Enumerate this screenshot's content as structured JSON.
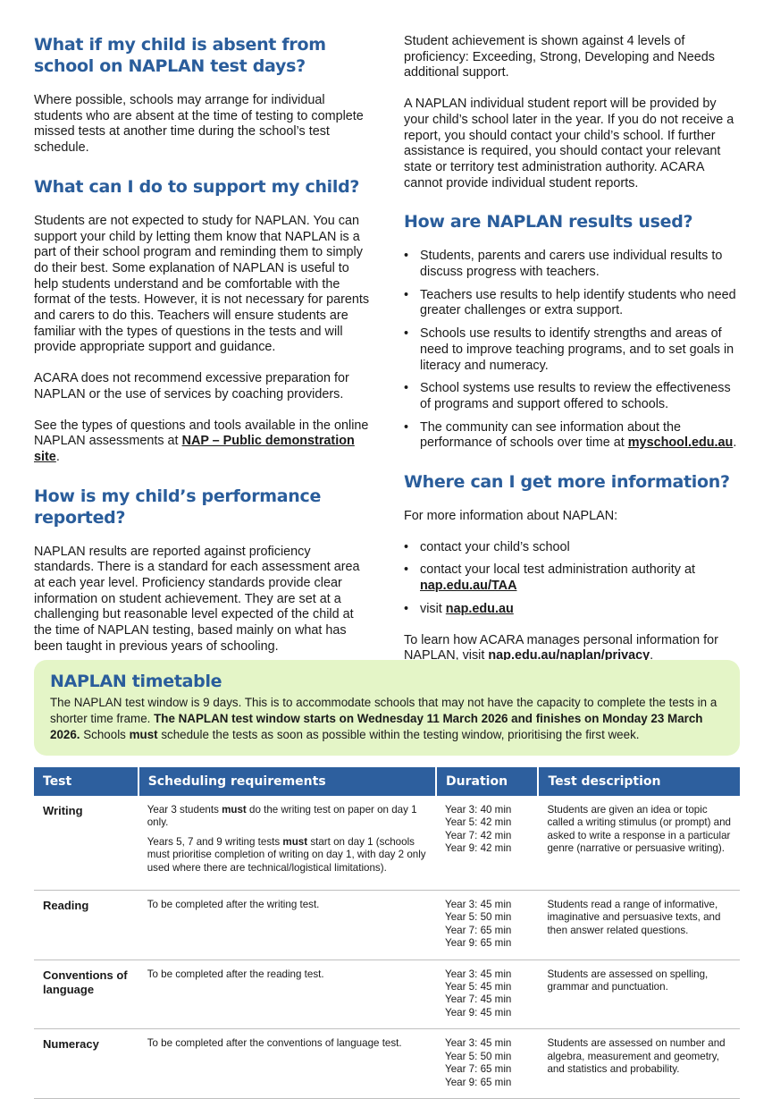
{
  "sections": [
    {
      "heading": "What if my child is absent from school on NAPLAN test days?",
      "body": [
        "Where possible, schools may arrange for individual students who are absent at the time of testing to complete missed tests at another time during the school’s test schedule."
      ]
    },
    {
      "heading": "What can I do to support my child?",
      "body": [
        "Students are not expected to study for NAPLAN. You can support your child by letting them know that NAPLAN is a part of their school program and reminding them to simply do their best. Some explanation of NAPLAN is useful to help students understand and be comfortable with the format of the tests. However, it is not necessary for parents and carers to do this. Teachers will ensure students are familiar with the types of questions in the tests and will provide appropriate support and guidance.",
        "ACARA does not recommend excessive preparation for NAPLAN or the use of services by coaching providers.",
        [
          "See the types of questions and tools available in the online NAPLAN assessments at ",
          "NAP – Public demonstration site",
          "."
        ]
      ]
    },
    {
      "heading": "How is my child’s performance reported?",
      "body": [
        "NAPLAN results are reported against proficiency standards. There is a standard for each assessment area at each year level. Proficiency standards provide clear information on student achievement. They are set at a challenging but reasonable level expected of the child at the time of NAPLAN testing, based mainly on what has been taught in previous years of schooling.",
        "Student achievement is shown against 4 levels of proficiency: Exceeding, Strong, Developing and Needs additional support.",
        "A NAPLAN individual student report will be provided by your child’s school later in the year. If you do not receive a report, you should contact your child’s school. If further assistance is required, you should contact your relevant state or territory test administration authority. ACARA cannot provide individual student reports."
      ]
    },
    {
      "heading": "How are NAPLAN results used?",
      "bullets": [
        "Students, parents and carers use individual results to discuss progress with teachers.",
        "Teachers use results to help identify students who need greater challenges or extra support.",
        "Schools use results to identify strengths and areas of need to improve teaching programs, and to set goals in literacy and numeracy.",
        "School systems use results to review the effectiveness of programs and support offered to schools.",
        [
          "The community can see information about the performance of schools over time at ",
          "myschool.edu.au",
          "."
        ]
      ]
    },
    {
      "heading": "Where can I get more information?",
      "body": [
        "For more information about NAPLAN:"
      ],
      "bullets": [
        "contact your child’s school",
        [
          "contact your local test administration authority at ",
          "nap.edu.au/TAA"
        ],
        [
          "visit ",
          "nap.edu.au"
        ]
      ],
      "footer": [
        "To learn how ACARA manages personal information for NAPLAN, visit ",
        "nap.edu.au/naplan/privacy",
        "."
      ]
    }
  ],
  "timetable": {
    "title": "NAPLAN timetable",
    "text": [
      "The NAPLAN test window is 9 days. This is to accommodate schools that may not have the capacity to complete the tests in a shorter time frame. ",
      "The NAPLAN test window starts on Wednesday 11 March 2026 and finishes on Monday 23 March 2026.",
      " Schools ",
      "must",
      " schedule the tests as soon as possible within the testing window, prioritising the first week."
    ]
  },
  "table": {
    "headers": [
      "Test",
      "Scheduling requirements",
      "Duration",
      "Test description"
    ],
    "rows": [
      {
        "test": "Writing",
        "scheduling": [
          [
            "Year 3 students ",
            "must",
            " do the writing test on paper on day 1 only."
          ],
          [
            "Years 5, 7 and 9 writing tests ",
            "must",
            " start on day 1 (schools must prioritise completion of writing on day 1, with day 2 only used where there are technical/logistical limitations)."
          ]
        ],
        "duration": [
          "Year 3: 40 min",
          "Year 5: 42 min",
          "Year 7: 42 min",
          "Year 9: 42 min"
        ],
        "description": "Students are given an idea or topic called a writing stimulus (or prompt) and asked to write a response in a particular genre (narrative or persuasive writing)."
      },
      {
        "test": "Reading",
        "scheduling": [
          "To be completed after the writing test."
        ],
        "duration": [
          "Year 3: 45 min",
          "Year 5: 50 min",
          "Year 7: 65 min",
          "Year 9: 65 min"
        ],
        "description": "Students read a range of informative, imaginative and persuasive texts, and then answer related questions."
      },
      {
        "test": "Conventions of language",
        "scheduling": [
          "To be completed after the reading test."
        ],
        "duration": [
          "Year 3: 45 min",
          "Year 5: 45 min",
          "Year 7: 45 min",
          "Year 9: 45 min"
        ],
        "description": "Students are assessed on spelling, grammar and punctuation."
      },
      {
        "test": "Numeracy",
        "scheduling": [
          "To be completed after the conventions of language test."
        ],
        "duration": [
          "Year 3: 45 min",
          "Year 5: 50 min",
          "Year 7: 65 min",
          "Year 9: 65 min"
        ],
        "description": "Students are assessed on number and algebra, measurement and geometry, and statistics and probability."
      }
    ]
  }
}
